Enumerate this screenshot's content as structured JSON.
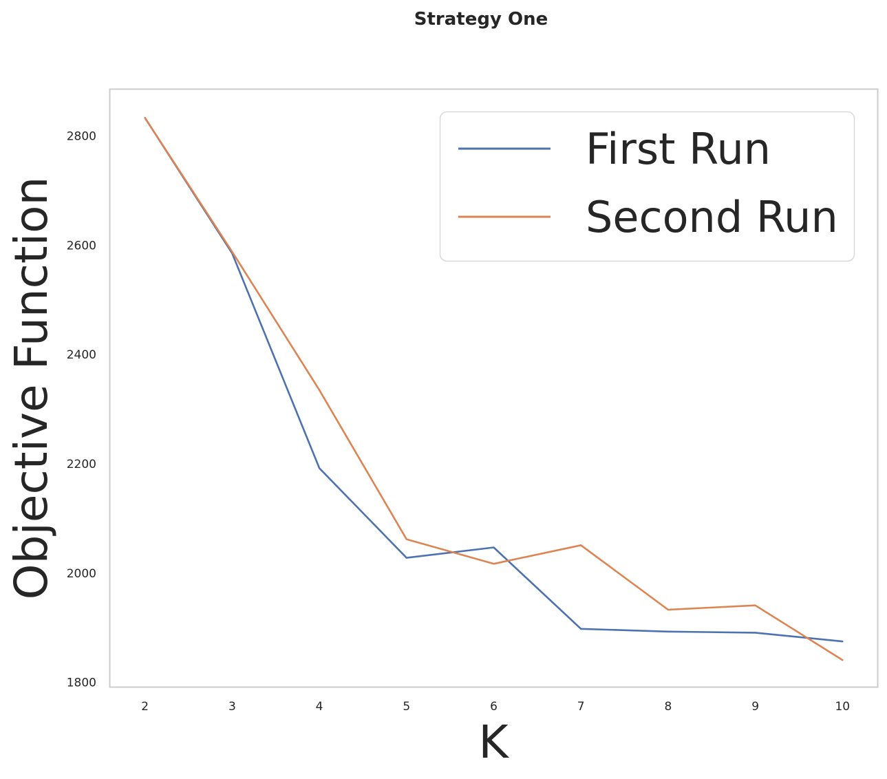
{
  "chart_data": {
    "type": "line",
    "title": "Strategy One",
    "xlabel": "K",
    "ylabel": "Objective Function",
    "x": [
      2,
      3,
      4,
      5,
      6,
      7,
      8,
      9,
      10
    ],
    "xticks": [
      "2",
      "3",
      "4",
      "5",
      "6",
      "7",
      "8",
      "9",
      "10"
    ],
    "yticks": [
      "1800",
      "2000",
      "2200",
      "2400",
      "2600",
      "2800"
    ],
    "xlim": [
      1.6,
      10.4
    ],
    "ylim": [
      1792,
      2885
    ],
    "grid": false,
    "legend_position": "top-right",
    "series": [
      {
        "name": "First Run",
        "color": "#4c72b0",
        "values": [
          2833,
          2585,
          2192,
          2028,
          2047,
          1898,
          1893,
          1891,
          1875
        ]
      },
      {
        "name": "Second Run",
        "color": "#dd8452",
        "values": [
          2833,
          2588,
          2335,
          2062,
          2017,
          2051,
          1933,
          1941,
          1841
        ]
      }
    ]
  }
}
